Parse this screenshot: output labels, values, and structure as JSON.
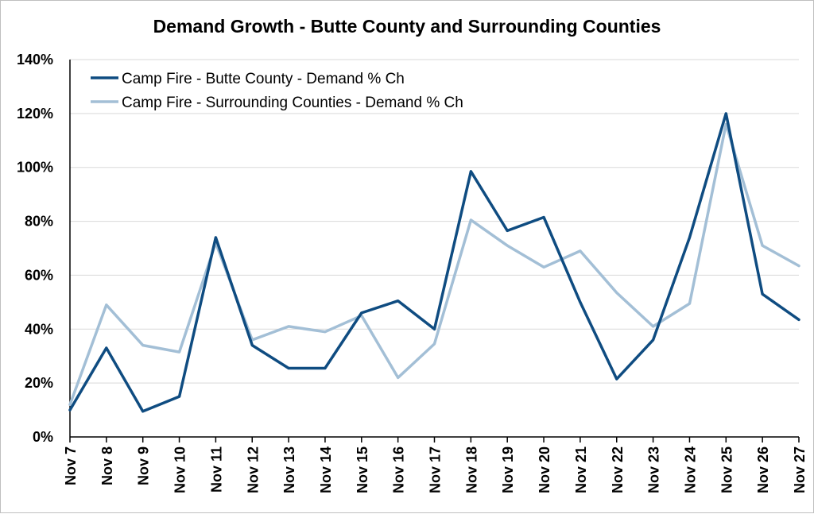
{
  "chart_data": {
    "type": "line",
    "title": "Demand Growth - Butte County and Surrounding Counties",
    "xlabel": "",
    "ylabel": "",
    "categories": [
      "Nov 7",
      "Nov 8",
      "Nov 9",
      "Nov 10",
      "Nov 11",
      "Nov 12",
      "Nov 13",
      "Nov 14",
      "Nov 15",
      "Nov 16",
      "Nov 17",
      "Nov 18",
      "Nov 19",
      "Nov 20",
      "Nov 21",
      "Nov 22",
      "Nov 23",
      "Nov 24",
      "Nov 25",
      "Nov 26",
      "Nov 27"
    ],
    "y_ticks": [
      "0%",
      "20%",
      "40%",
      "60%",
      "80%",
      "100%",
      "120%",
      "140%"
    ],
    "ylim": [
      0,
      140
    ],
    "grid": "horizontal",
    "legend_position": "top-left",
    "series": [
      {
        "name": "Camp Fire - Butte County - Demand % Ch",
        "color": "#0f4c81",
        "values": [
          10,
          33,
          9.5,
          15,
          74,
          34,
          25.5,
          25.5,
          46,
          50.5,
          40,
          98.5,
          76.5,
          81.5,
          50,
          21.5,
          36,
          74,
          120,
          53,
          43.5
        ]
      },
      {
        "name": "Camp Fire - Surrounding Counties - Demand % Ch",
        "color": "#a3bfd6",
        "values": [
          12,
          49,
          34,
          31.5,
          72,
          36,
          41,
          39,
          45,
          22,
          34.5,
          80.5,
          71,
          63,
          69,
          53.5,
          41,
          49.5,
          116,
          71,
          63.5
        ]
      }
    ]
  }
}
